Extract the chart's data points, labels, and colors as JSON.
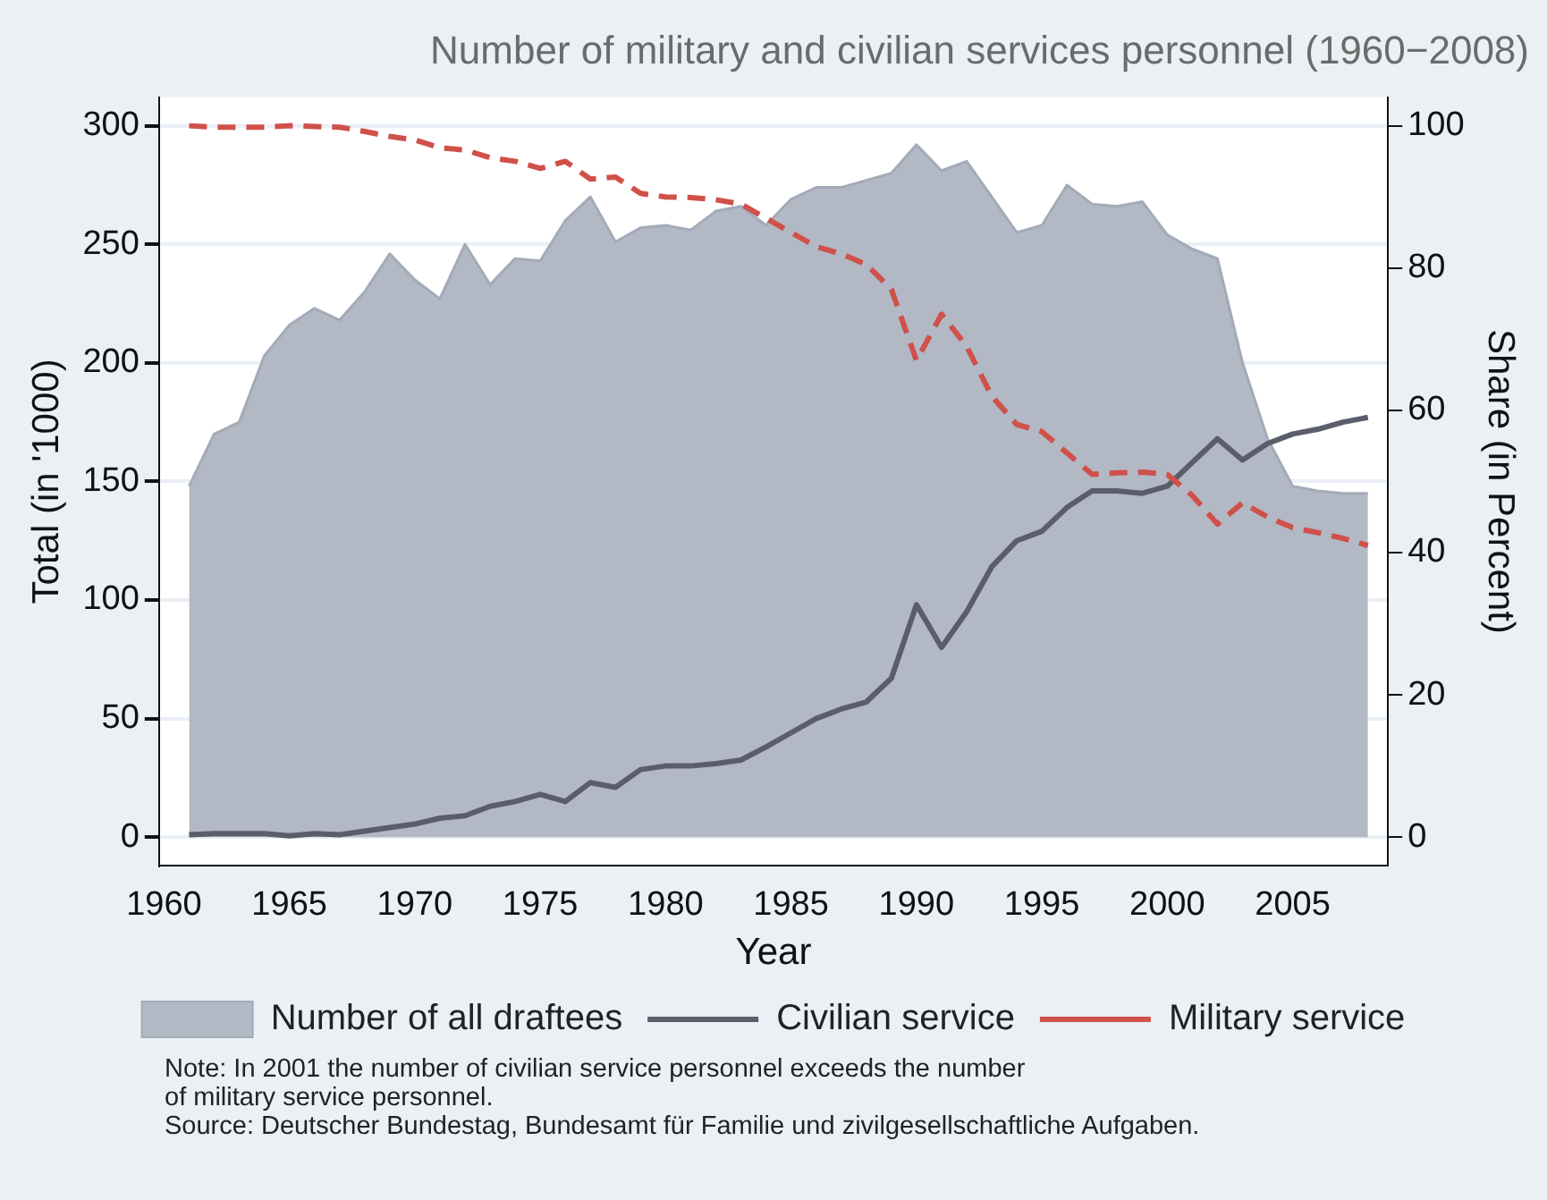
{
  "chart_data": {
    "type": "line",
    "title": "Number of military and civilian services personnel (1960−2008)",
    "xlabel": "Year",
    "ylabel": "Total (in '1000)",
    "y2label": "Share (in Percent)",
    "x": [
      1961,
      1962,
      1963,
      1964,
      1965,
      1966,
      1967,
      1968,
      1969,
      1970,
      1971,
      1972,
      1973,
      1974,
      1975,
      1976,
      1977,
      1978,
      1979,
      1980,
      1981,
      1982,
      1983,
      1984,
      1985,
      1986,
      1987,
      1988,
      1989,
      1990,
      1991,
      1992,
      1993,
      1994,
      1995,
      1996,
      1997,
      1998,
      1999,
      2000,
      2001,
      2002,
      2003,
      2004,
      2005,
      2006,
      2007,
      2008
    ],
    "series": [
      {
        "name": "Number of all draftees",
        "type": "area",
        "color": "#b2b8c4",
        "values": [
          148,
          170,
          175,
          203,
          216,
          223,
          218,
          230,
          246,
          235,
          227,
          250,
          233,
          244,
          243,
          260,
          270,
          251,
          257,
          258,
          256,
          264,
          266,
          258,
          269,
          274,
          274,
          277,
          280,
          292,
          281,
          285,
          270,
          255,
          258,
          275,
          267,
          266,
          268,
          254,
          248,
          244,
          200,
          168,
          148,
          146,
          145,
          145
        ]
      },
      {
        "name": "Civilian service",
        "type": "line",
        "color": "#5a5e6a",
        "line_style": "solid",
        "values": [
          1,
          1.5,
          1.5,
          1.5,
          0.5,
          1.5,
          1,
          2.5,
          4,
          5.5,
          8,
          9,
          13,
          15,
          18,
          15,
          23,
          21,
          28.5,
          30,
          30,
          31,
          32.5,
          38,
          44,
          50,
          54,
          57,
          67,
          98,
          80,
          95,
          114,
          125,
          129,
          139,
          146,
          146,
          145,
          148,
          158,
          168,
          159,
          166,
          170,
          172,
          175,
          177
        ]
      },
      {
        "name": "Military service",
        "type": "line",
        "color": "#d0504a",
        "line_style": "dashed",
        "axis": "y2",
        "values": [
          100,
          99.8,
          99.8,
          99.8,
          100,
          99.9,
          99.8,
          99.2,
          98.5,
          98,
          96.9,
          96.6,
          95.5,
          95,
          94,
          95,
          92.5,
          92.8,
          90.5,
          90,
          89.9,
          89.6,
          89,
          87,
          85,
          83,
          82,
          80.5,
          77,
          67,
          73.5,
          69,
          62,
          58,
          57,
          54,
          51,
          51.2,
          51.3,
          51,
          48,
          44,
          47,
          45,
          43.5,
          42.8,
          42,
          41
        ]
      }
    ],
    "xlim": [
      1959.8,
      2008.8
    ],
    "xticks": [
      1960,
      1965,
      1970,
      1975,
      1980,
      1985,
      1990,
      1995,
      2000,
      2005
    ],
    "ylim": [
      -12,
      312
    ],
    "yticks": [
      0,
      50,
      100,
      150,
      200,
      250,
      300
    ],
    "y2lim": [
      -4,
      104
    ],
    "y2ticks": [
      0,
      20,
      40,
      60,
      80,
      100
    ],
    "grid": "y",
    "legend": "bottom",
    "marker": "none",
    "annotations": [
      "Note: In 2001 the number of civilian service personnel exceeds the number\nof military service personnel.",
      "Source: Deutscher Bundestag, Bundesamt für Familie und zivilgesellschaftliche Aufgaben."
    ]
  }
}
